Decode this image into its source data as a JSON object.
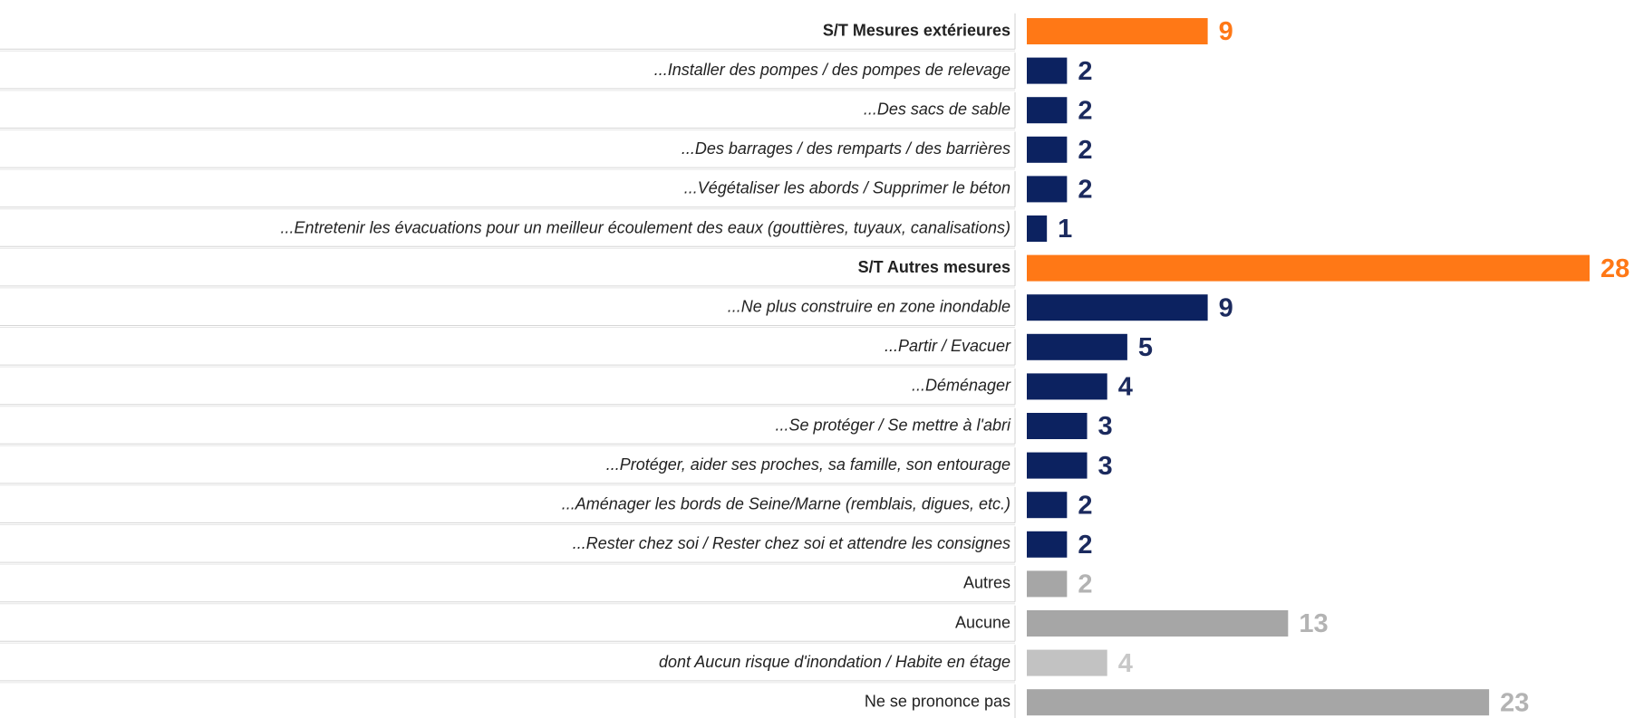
{
  "chart_data": {
    "type": "barh",
    "categories": [
      "S/T Mesures extérieures",
      "...Installer des pompes / des pompes de relevage",
      "...Des sacs de sable",
      "...Des barrages / des remparts / des barrières",
      "...Végétaliser les abords / Supprimer le béton",
      "...Entretenir les évacuations pour un meilleur écoulement des eaux (gouttières, tuyaux, canalisations)",
      "S/T Autres mesures",
      "...Ne plus construire en zone inondable",
      "...Partir / Evacuer",
      "...Déménager",
      "...Se protéger / Se mettre à l'abri",
      "...Protéger, aider ses proches, sa famille, son entourage",
      "...Aménager les bords de Seine/Marne (remblais, digues, etc.)",
      "...Rester chez soi / Rester chez soi et attendre les consignes",
      "Autres",
      "Aucune",
      "dont Aucun risque d'inondation / Habite en étage",
      "Ne se prononce pas"
    ],
    "values": [
      9,
      2,
      2,
      2,
      2,
      1,
      28,
      9,
      5,
      4,
      3,
      3,
      2,
      2,
      2,
      13,
      4,
      23
    ],
    "colors": [
      "#ff7816",
      "#0c2260",
      "#0c2260",
      "#0c2260",
      "#0c2260",
      "#0c2260",
      "#ff7816",
      "#0c2260",
      "#0c2260",
      "#0c2260",
      "#0c2260",
      "#0c2260",
      "#0c2260",
      "#0c2260",
      "#a6a6a6",
      "#a6a6a6",
      "#c2c2c2",
      "#a6a6a6"
    ],
    "label_colors": [
      "#ff7816",
      "#1b2a5e",
      "#1b2a5e",
      "#1b2a5e",
      "#1b2a5e",
      "#1b2a5e",
      "#ff7816",
      "#1b2a5e",
      "#1b2a5e",
      "#1b2a5e",
      "#1b2a5e",
      "#1b2a5e",
      "#1b2a5e",
      "#1b2a5e",
      "#b3b3b3",
      "#b3b3b3",
      "#c8c8c8",
      "#b3b3b3"
    ],
    "styles": [
      "bold",
      "italic",
      "italic",
      "italic",
      "italic",
      "italic",
      "bold",
      "italic",
      "italic",
      "italic",
      "italic",
      "italic",
      "italic",
      "italic",
      "normal",
      "normal",
      "italic",
      "normal"
    ]
  }
}
